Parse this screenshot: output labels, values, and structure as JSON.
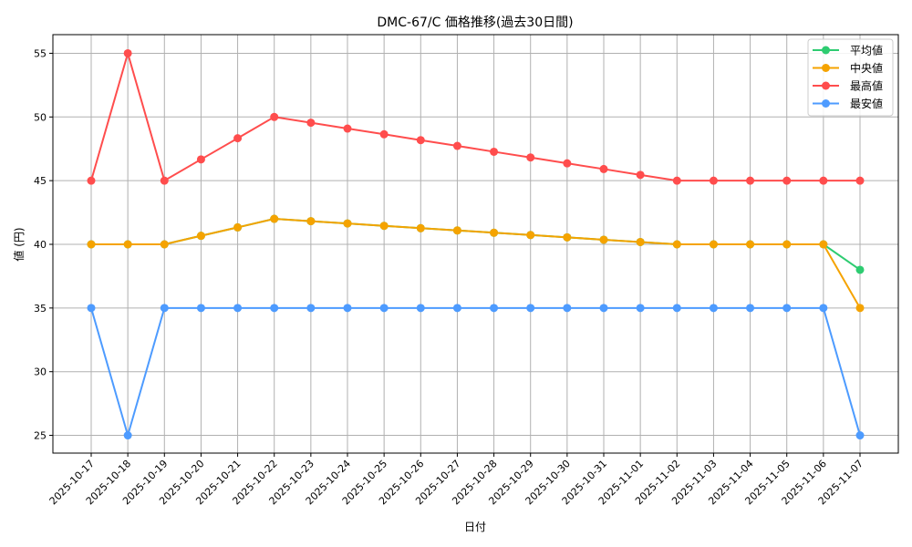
{
  "chart_data": {
    "type": "line",
    "title": "DMC-67/C 価格推移(過去30日間)",
    "xlabel": "日付",
    "ylabel": "値 (円)",
    "ylim": [
      23.5,
      56.5
    ],
    "yticks": [
      25,
      30,
      35,
      40,
      45,
      50,
      55
    ],
    "grid": true,
    "legend_position": "upper right",
    "x": [
      "2025-10-17",
      "2025-10-18",
      "2025-10-19",
      "2025-10-20",
      "2025-10-21",
      "2025-10-22",
      "2025-10-23",
      "2025-10-24",
      "2025-10-25",
      "2025-10-26",
      "2025-10-27",
      "2025-10-28",
      "2025-10-29",
      "2025-10-30",
      "2025-10-31",
      "2025-11-01",
      "2025-11-02",
      "2025-11-03",
      "2025-11-04",
      "2025-11-05",
      "2025-11-06",
      "2025-11-07"
    ],
    "series": [
      {
        "name": "平均値",
        "color": "#2ecc71",
        "values": [
          40,
          40,
          40,
          40.67,
          41.33,
          42,
          41.82,
          41.64,
          41.45,
          41.27,
          41.09,
          40.91,
          40.73,
          40.55,
          40.36,
          40.18,
          40,
          40,
          40,
          40,
          40,
          38
        ]
      },
      {
        "name": "中央値",
        "color": "#f5a300",
        "values": [
          40,
          40,
          40,
          40.67,
          41.33,
          42,
          41.82,
          41.64,
          41.45,
          41.27,
          41.09,
          40.91,
          40.73,
          40.55,
          40.36,
          40.18,
          40,
          40,
          40,
          40,
          40,
          35
        ]
      },
      {
        "name": "最高値",
        "color": "#ff4d4d",
        "values": [
          45,
          55,
          45,
          46.67,
          48.33,
          50,
          49.55,
          49.09,
          48.64,
          48.18,
          47.73,
          47.27,
          46.82,
          46.36,
          45.91,
          45.45,
          45,
          45,
          45,
          45,
          45,
          45
        ]
      },
      {
        "name": "最安値",
        "color": "#4d9bff",
        "values": [
          35,
          25,
          35,
          35,
          35,
          35,
          35,
          35,
          35,
          35,
          35,
          35,
          35,
          35,
          35,
          35,
          35,
          35,
          35,
          35,
          35,
          25
        ]
      }
    ]
  }
}
